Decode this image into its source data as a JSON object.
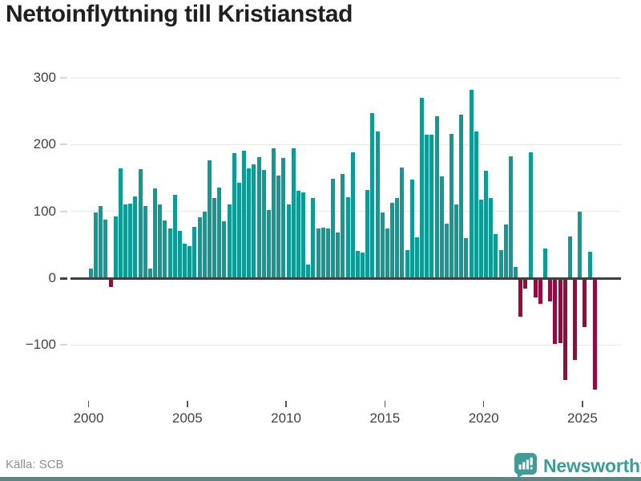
{
  "title": "Nettoinflyttning till Kristianstad",
  "source": "Källa: SCB",
  "logo": {
    "text": "Newsworthy",
    "color": "#3d9b98"
  },
  "colors": {
    "positive": "#0b9c95",
    "negative": "#9a093d",
    "gridline": "#e7e7e7",
    "zero_line": "#3f3f3f",
    "axis_text": "#424242",
    "title_text": "#1f1f1f",
    "source_text": "#8f8f8f",
    "logo_teal": "#3d9b98"
  },
  "chart_data": {
    "type": "bar",
    "title": "Nettoinflyttning till Kristianstad",
    "frequency": "quarterly",
    "x_start": "2000 Q1",
    "x_end": "2025 Q3",
    "grid": "horizontal",
    "legend": "none",
    "ylim": [
      -175,
      310
    ],
    "y_ticks": [
      300,
      200,
      100,
      0,
      -100
    ],
    "y_tick_labels": [
      "300",
      "200",
      "100",
      "0",
      "−100"
    ],
    "x_tick_years": [
      2000,
      2005,
      2010,
      2015,
      2020,
      2025
    ],
    "quarters": [
      "2000 Q1",
      "2000 Q2",
      "2000 Q3",
      "2000 Q4",
      "2001 Q1",
      "2001 Q2",
      "2001 Q3",
      "2001 Q4",
      "2002 Q1",
      "2002 Q2",
      "2002 Q3",
      "2002 Q4",
      "2003 Q1",
      "2003 Q2",
      "2003 Q3",
      "2003 Q4",
      "2004 Q1",
      "2004 Q2",
      "2004 Q3",
      "2004 Q4",
      "2005 Q1",
      "2005 Q2",
      "2005 Q3",
      "2005 Q4",
      "2006 Q1",
      "2006 Q2",
      "2006 Q3",
      "2006 Q4",
      "2007 Q1",
      "2007 Q2",
      "2007 Q3",
      "2007 Q4",
      "2008 Q1",
      "2008 Q2",
      "2008 Q3",
      "2008 Q4",
      "2009 Q1",
      "2009 Q2",
      "2009 Q3",
      "2009 Q4",
      "2010 Q1",
      "2010 Q2",
      "2010 Q3",
      "2010 Q4",
      "2011 Q1",
      "2011 Q2",
      "2011 Q3",
      "2011 Q4",
      "2012 Q1",
      "2012 Q2",
      "2012 Q3",
      "2012 Q4",
      "2013 Q1",
      "2013 Q2",
      "2013 Q3",
      "2013 Q4",
      "2014 Q1",
      "2014 Q2",
      "2014 Q3",
      "2014 Q4",
      "2015 Q1",
      "2015 Q2",
      "2015 Q3",
      "2015 Q4",
      "2016 Q1",
      "2016 Q2",
      "2016 Q3",
      "2016 Q4",
      "2017 Q1",
      "2017 Q2",
      "2017 Q3",
      "2017 Q4",
      "2018 Q1",
      "2018 Q2",
      "2018 Q3",
      "2018 Q4",
      "2019 Q1",
      "2019 Q2",
      "2019 Q3",
      "2019 Q4",
      "2020 Q1",
      "2020 Q2",
      "2020 Q3",
      "2020 Q4",
      "2021 Q1",
      "2021 Q2",
      "2021 Q3",
      "2021 Q4",
      "2022 Q1",
      "2022 Q2",
      "2022 Q3",
      "2022 Q4",
      "2023 Q1",
      "2023 Q2",
      "2023 Q3",
      "2023 Q4",
      "2024 Q1",
      "2024 Q2",
      "2024 Q3",
      "2024 Q4",
      "2025 Q1",
      "2025 Q2",
      "2025 Q3"
    ],
    "series": [
      {
        "name": "Nettoinflyttning",
        "values": [
          14,
          99,
          108,
          88,
          -13,
          92,
          165,
          110,
          112,
          122,
          163,
          108,
          14,
          134,
          111,
          86,
          75,
          125,
          71,
          52,
          48,
          77,
          91,
          100,
          177,
          120,
          136,
          85,
          111,
          187,
          143,
          191,
          164,
          171,
          181,
          162,
          102,
          194,
          154,
          180,
          110,
          195,
          131,
          128,
          20,
          120,
          74,
          76,
          74,
          149,
          68,
          156,
          121,
          188,
          41,
          38,
          132,
          247,
          220,
          99,
          75,
          113,
          120,
          166,
          42,
          148,
          61,
          270,
          215,
          215,
          243,
          152,
          82,
          216,
          110,
          245,
          60,
          282,
          220,
          118,
          161,
          120,
          66,
          42,
          80,
          182,
          17,
          -58,
          -16,
          189,
          -29,
          -39,
          45,
          -35,
          -98,
          -97,
          -153,
          63,
          -122,
          100,
          -73,
          40,
          -167
        ]
      }
    ]
  }
}
